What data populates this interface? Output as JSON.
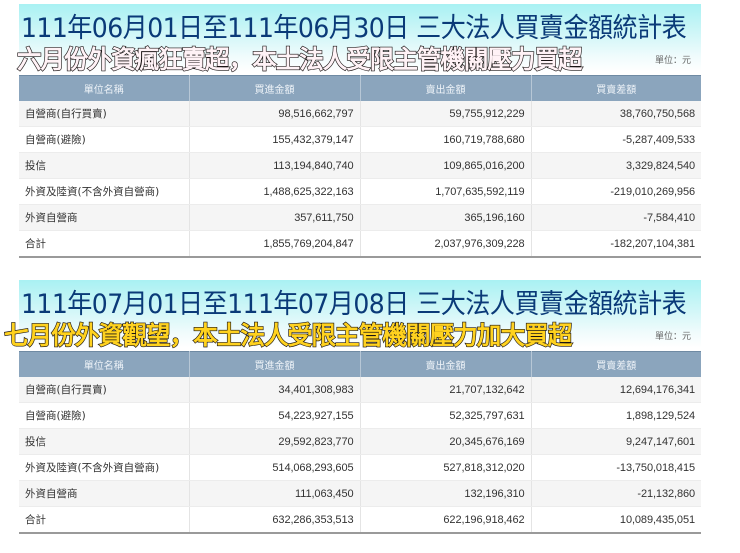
{
  "panels": [
    {
      "id": "june",
      "title": "111年06月01日至111年06月30日 三大法人買賣金額統計表",
      "subtitle": "六月份外資瘋狂賣超，本土法人受限主管機關壓力買超",
      "subtitle_color": "#fff2f6",
      "unit_label": "單位：元",
      "headers": [
        "單位名稱",
        "買進金額",
        "賣出金額",
        "買賣差額"
      ],
      "rows": [
        [
          "自營商(自行買賣)",
          "98,516,662,797",
          "59,755,912,229",
          "38,760,750,568"
        ],
        [
          "自營商(避險)",
          "155,432,379,147",
          "160,719,788,680",
          "-5,287,409,533"
        ],
        [
          "投信",
          "113,194,840,740",
          "109,865,016,200",
          "3,329,824,540"
        ],
        [
          "外資及陸資(不含外資自營商)",
          "1,488,625,322,163",
          "1,707,635,592,119",
          "-219,010,269,956"
        ],
        [
          "外資自營商",
          "357,611,750",
          "365,196,160",
          "-7,584,410"
        ],
        [
          "合計",
          "1,855,769,204,847",
          "2,037,976,309,228",
          "-182,207,104,381"
        ]
      ]
    },
    {
      "id": "july",
      "title": "111年07月01日至111年07月08日 三大法人買賣金額統計表",
      "subtitle": "七月份外資觀望，本土法人受限主管機關壓力加大買超",
      "subtitle_color": "#ffd21f",
      "unit_label": "單位：元",
      "headers": [
        "單位名稱",
        "買進金額",
        "賣出金額",
        "買賣差額"
      ],
      "rows": [
        [
          "自營商(自行買賣)",
          "34,401,308,983",
          "21,707,132,642",
          "12,694,176,341"
        ],
        [
          "自營商(避險)",
          "54,223,927,155",
          "52,325,797,631",
          "1,898,129,524"
        ],
        [
          "投信",
          "29,592,823,770",
          "20,345,676,169",
          "9,247,147,601"
        ],
        [
          "外資及陸資(不含外資自營商)",
          "514,068,293,605",
          "527,818,312,020",
          "-13,750,018,415"
        ],
        [
          "外資自營商",
          "111,063,450",
          "132,196,310",
          "-21,132,860"
        ],
        [
          "合計",
          "632,286,353,513",
          "622,196,918,462",
          "10,089,435,051"
        ]
      ]
    }
  ],
  "colors": {
    "title_text": "#0a3a78",
    "title_band_top": "#a9f1f3",
    "header_bg": "#8ba5bd",
    "header_text": "#eef3f8",
    "row_alt_bg": "#f5f5f5"
  }
}
